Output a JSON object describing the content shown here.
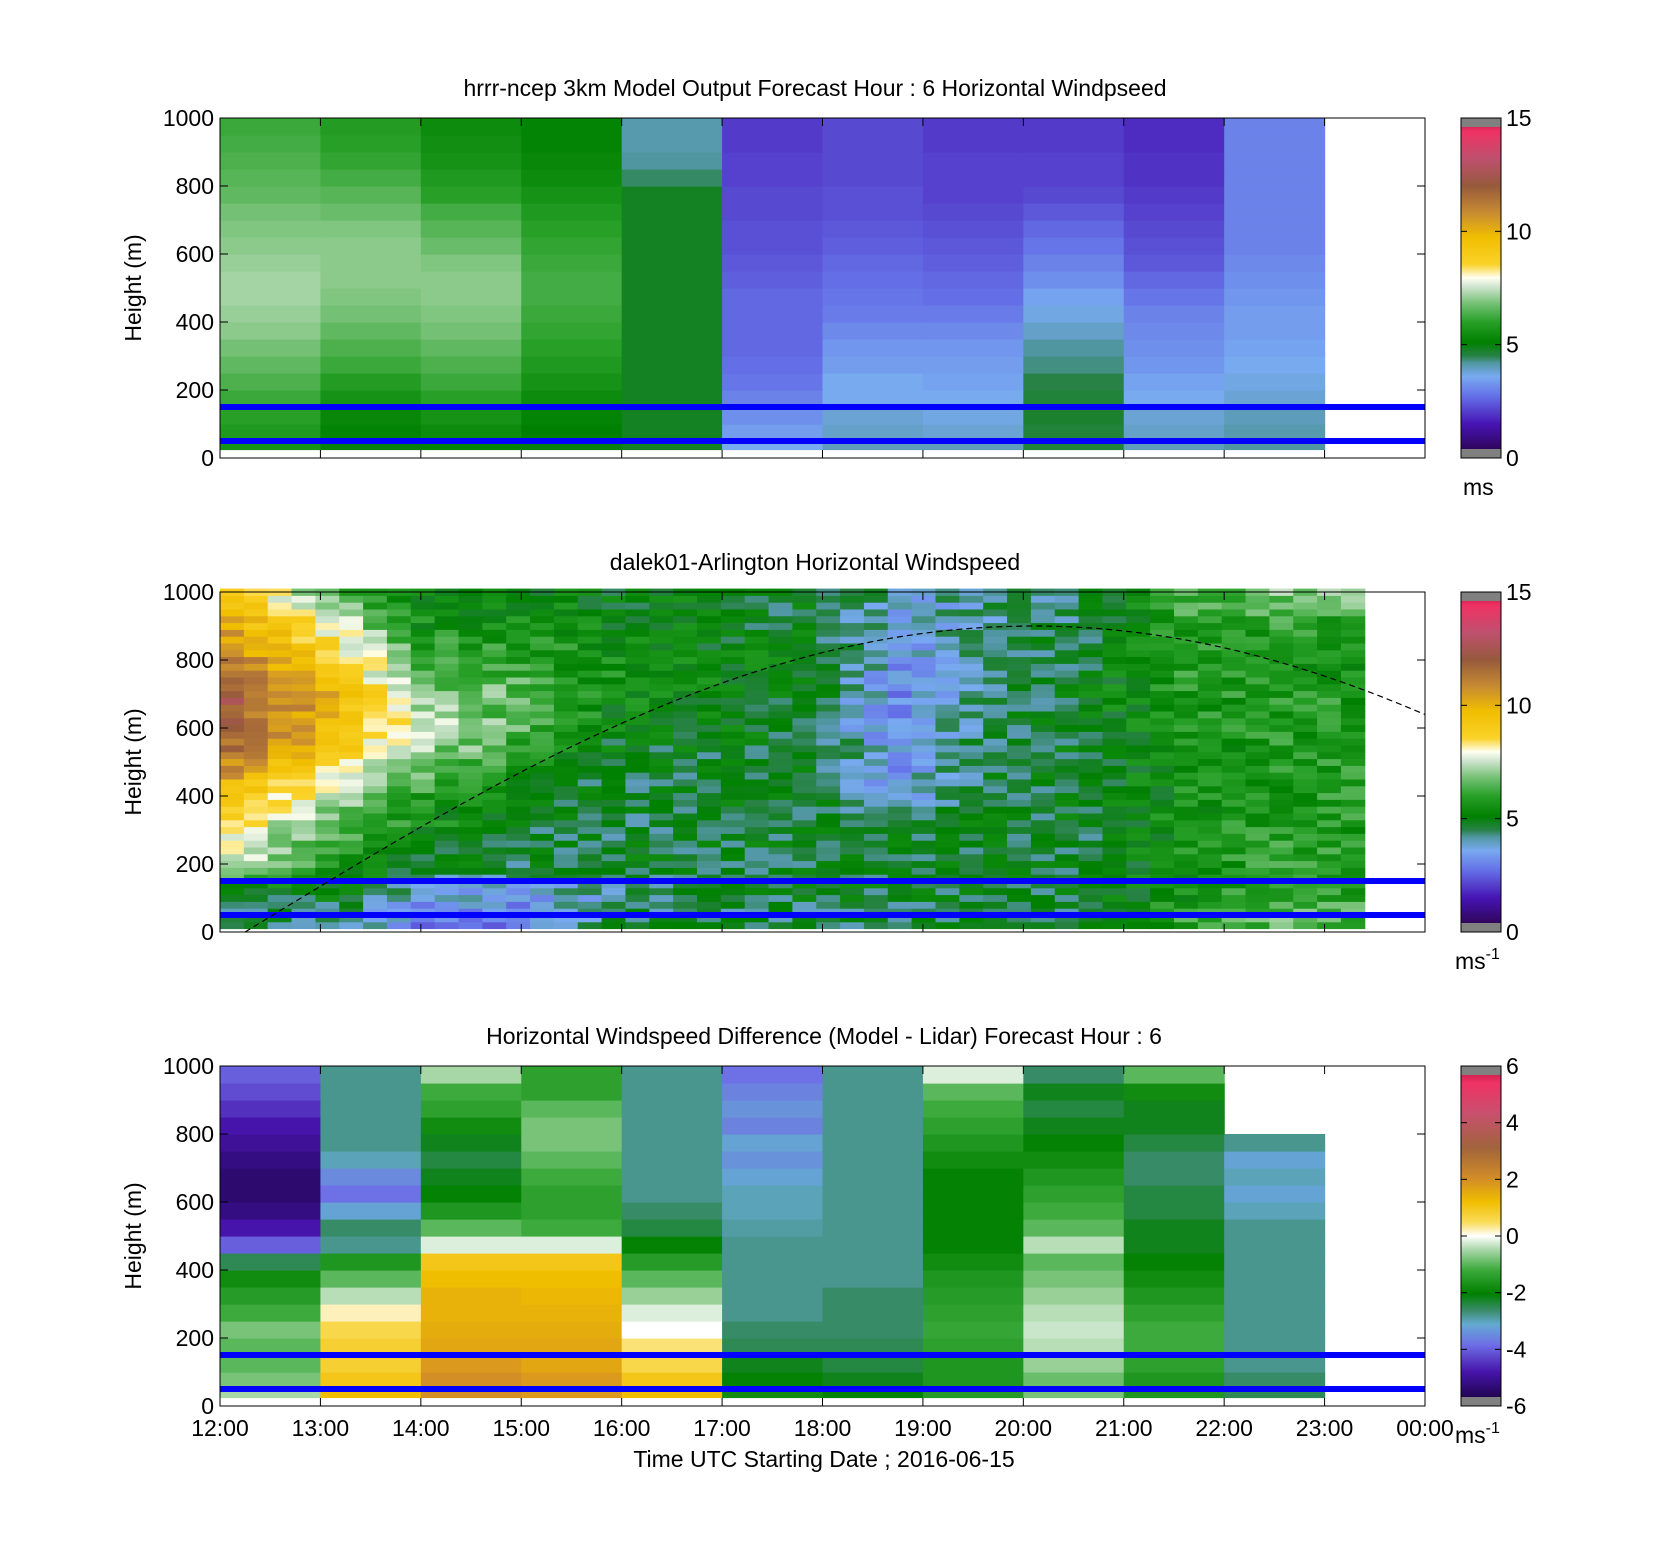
{
  "figure": {
    "xlabel": "Time UTC  Starting Date ; 2016-06-15",
    "xticks": [
      "12:00",
      "13:00",
      "14:00",
      "15:00",
      "16:00",
      "17:00",
      "18:00",
      "19:00",
      "20:00",
      "21:00",
      "22:00",
      "23:00",
      "00:00"
    ],
    "yticks": [
      "0",
      "200",
      "400",
      "600",
      "800",
      "1000"
    ],
    "ylabel": "Height (m)"
  },
  "panels": [
    {
      "id": "model",
      "title": "hrrr-ncep 3km Model Output   Forecast Hour : 6 Horizontal Windpseed",
      "colorbar": {
        "ticks": [
          "0",
          "5",
          "10",
          "15"
        ],
        "unit": "ms",
        "unit_sup": "",
        "min": 0,
        "max": 15
      },
      "colormap": "windspeed"
    },
    {
      "id": "lidar",
      "title": "dalek01-Arlington  Horizontal Windspeed",
      "colorbar": {
        "ticks": [
          "0",
          "5",
          "10",
          "15"
        ],
        "unit": "ms",
        "unit_sup": "-1",
        "min": 0,
        "max": 15
      },
      "colormap": "windspeed"
    },
    {
      "id": "diff",
      "title": "Horizontal Windspeed Difference (Model - Lidar) Forecast Hour : 6",
      "colorbar": {
        "ticks": [
          "-6",
          "-4",
          "-2",
          "0",
          "2",
          "4",
          "6"
        ],
        "unit": "ms",
        "unit_sup": "-1",
        "min": -6,
        "max": 6
      },
      "colormap": "difference"
    }
  ],
  "chart_data": [
    {
      "type": "heatmap",
      "title": "hrrr-ncep 3km Model Output   Forecast Hour : 6 Horizontal Windpseed",
      "xlabel": "",
      "ylabel": "Height (m)",
      "x_start": "12:00",
      "x_end": "00:00",
      "ylim": [
        0,
        1000
      ],
      "clim": [
        0,
        15
      ],
      "colorbar_label": "ms",
      "hours": [
        "12:00",
        "13:00",
        "14:00",
        "15:00",
        "16:00",
        "17:00",
        "18:00",
        "19:00",
        "20:00",
        "21:00",
        "22:00"
      ],
      "heights": [
        50,
        100,
        150,
        200,
        250,
        300,
        350,
        400,
        450,
        500,
        550,
        600,
        650,
        700,
        750,
        800,
        850,
        900,
        950,
        1000
      ],
      "values": [
        [
          5.6,
          5.0,
          5.2,
          5.0,
          4.8,
          3.6,
          4.0,
          4.0,
          4.6,
          4.0,
          4.2
        ],
        [
          5.8,
          5.2,
          5.4,
          5.1,
          4.8,
          3.4,
          3.9,
          3.8,
          4.6,
          3.9,
          4.1
        ],
        [
          6.0,
          5.3,
          5.6,
          5.2,
          4.8,
          3.2,
          3.8,
          3.7,
          4.7,
          3.8,
          4.0
        ],
        [
          6.2,
          5.6,
          6.0,
          5.4,
          4.8,
          3.0,
          3.6,
          3.6,
          4.6,
          3.6,
          3.8
        ],
        [
          6.4,
          5.9,
          6.2,
          5.6,
          4.8,
          2.8,
          3.6,
          3.5,
          4.5,
          3.5,
          3.7
        ],
        [
          6.6,
          6.2,
          6.4,
          5.8,
          4.8,
          2.7,
          3.4,
          3.4,
          4.3,
          3.3,
          3.6
        ],
        [
          6.8,
          6.4,
          6.6,
          6.0,
          4.8,
          2.6,
          3.3,
          3.3,
          4.2,
          3.2,
          3.5
        ],
        [
          7.0,
          6.6,
          6.8,
          6.1,
          4.8,
          2.6,
          3.1,
          3.1,
          3.9,
          3.1,
          3.4
        ],
        [
          7.1,
          6.8,
          6.9,
          6.2,
          4.8,
          2.6,
          2.9,
          2.9,
          3.7,
          3.0,
          3.4
        ],
        [
          7.2,
          6.9,
          7.0,
          6.3,
          4.8,
          2.6,
          2.8,
          2.7,
          3.5,
          2.8,
          3.3
        ],
        [
          7.2,
          7.0,
          7.0,
          6.3,
          4.8,
          2.5,
          2.7,
          2.6,
          3.2,
          2.6,
          3.2
        ],
        [
          7.1,
          7.0,
          6.9,
          6.2,
          4.8,
          2.4,
          2.6,
          2.5,
          3.0,
          2.4,
          3.1
        ],
        [
          7.0,
          7.0,
          6.7,
          6.1,
          4.8,
          2.3,
          2.5,
          2.4,
          2.8,
          2.3,
          3.0
        ],
        [
          6.9,
          6.9,
          6.5,
          6.0,
          4.8,
          2.3,
          2.4,
          2.3,
          2.6,
          2.2,
          3.0
        ],
        [
          6.8,
          6.7,
          6.3,
          5.8,
          4.8,
          2.2,
          2.3,
          2.2,
          2.4,
          2.1,
          3.0
        ],
        [
          6.6,
          6.5,
          6.0,
          5.6,
          4.8,
          2.2,
          2.3,
          2.1,
          2.2,
          2.0,
          3.0
        ],
        [
          6.5,
          6.3,
          5.8,
          5.4,
          4.4,
          2.1,
          2.2,
          2.1,
          2.1,
          1.9,
          3.0
        ],
        [
          6.4,
          6.1,
          5.6,
          5.3,
          4.2,
          2.1,
          2.2,
          2.1,
          2.1,
          1.9,
          3.0
        ],
        [
          6.3,
          6.0,
          5.5,
          5.2,
          4.1,
          2.0,
          2.2,
          2.0,
          2.0,
          1.8,
          3.0
        ],
        [
          6.2,
          5.9,
          5.4,
          5.2,
          4.1,
          2.0,
          2.2,
          2.0,
          2.0,
          1.8,
          3.0
        ]
      ],
      "reference_lines_m": [
        150,
        50
      ]
    },
    {
      "type": "heatmap",
      "title": "dalek01-Arlington  Horizontal Windspeed",
      "xlabel": "",
      "ylabel": "Height (m)",
      "x_start": "12:00",
      "x_end": "00:00",
      "ylim": [
        0,
        1000
      ],
      "clim": [
        0,
        15
      ],
      "colorbar_label": "ms-1",
      "time_columns": 48,
      "time_step_minutes": 15,
      "hours": [
        "12:00",
        "13:00",
        "14:00",
        "15:00",
        "16:00",
        "17:00",
        "18:00",
        "19:00",
        "20:00",
        "21:00",
        "22:00",
        "23:00"
      ],
      "heights": [
        50,
        100,
        200,
        300,
        400,
        500,
        600,
        700,
        800,
        900,
        1000
      ],
      "hourly_profile_values": [
        [
          4.5,
          4.5,
          3.0,
          3.0,
          4.5,
          4.5,
          4.5,
          4.5,
          4.5,
          4.5,
          6.0,
          6.5
        ],
        [
          5.0,
          5.0,
          4.0,
          3.5,
          4.0,
          4.8,
          4.8,
          4.8,
          4.8,
          4.8,
          5.5,
          6.0
        ],
        [
          7.5,
          6.0,
          5.0,
          4.8,
          4.8,
          4.8,
          4.8,
          4.8,
          4.8,
          4.8,
          5.5,
          6.0
        ],
        [
          8.5,
          6.5,
          5.5,
          4.8,
          4.6,
          4.8,
          4.8,
          4.8,
          4.8,
          4.8,
          5.5,
          5.8
        ],
        [
          9.5,
          7.5,
          6.0,
          5.2,
          4.6,
          4.8,
          4.8,
          3.5,
          4.8,
          4.8,
          5.5,
          5.8
        ],
        [
          11.0,
          9.0,
          7.0,
          6.0,
          4.8,
          4.8,
          4.8,
          3.5,
          4.8,
          4.8,
          5.5,
          5.8
        ],
        [
          12.0,
          10.0,
          7.5,
          6.5,
          5.2,
          5.0,
          4.8,
          3.2,
          4.5,
          5.0,
          5.6,
          5.8
        ],
        [
          12.0,
          10.0,
          7.0,
          6.5,
          5.5,
          5.2,
          5.0,
          3.2,
          4.5,
          5.0,
          5.8,
          5.8
        ],
        [
          11.0,
          9.0,
          6.2,
          6.0,
          5.5,
          5.2,
          5.0,
          3.5,
          4.5,
          4.8,
          5.8,
          5.5
        ],
        [
          10.0,
          8.0,
          5.5,
          5.5,
          5.2,
          5.0,
          4.8,
          3.6,
          4.2,
          4.5,
          6.0,
          6.0
        ],
        [
          9.0,
          6.5,
          5.0,
          5.0,
          5.0,
          5.0,
          4.8,
          4.0,
          4.2,
          4.8,
          6.5,
          7.0
        ]
      ],
      "reference_lines_m": [
        150,
        50
      ]
    },
    {
      "type": "heatmap",
      "title": "Horizontal Windspeed Difference (Model - Lidar) Forecast Hour : 6",
      "xlabel": "Time UTC  Starting Date ; 2016-06-15",
      "ylabel": "Height (m)",
      "x_start": "12:00",
      "x_end": "00:00",
      "ylim": [
        0,
        1000
      ],
      "clim": [
        -6,
        6
      ],
      "colorbar_label": "ms-1",
      "hours": [
        "12:00",
        "13:00",
        "14:00",
        "15:00",
        "16:00",
        "17:00",
        "18:00",
        "19:00",
        "20:00",
        "21:00",
        "22:00"
      ],
      "heights": [
        50,
        100,
        150,
        200,
        250,
        300,
        350,
        400,
        450,
        500,
        550,
        600,
        650,
        700,
        750,
        800,
        850,
        900,
        950,
        1000
      ],
      "values": [
        [
          -0.5,
          1.2,
          2.0,
          1.8,
          1.2,
          -1.8,
          -2.0,
          -1.5,
          -0.8,
          -1.6,
          -2.5
        ],
        [
          -0.8,
          1.0,
          2.0,
          1.8,
          1.0,
          -2.0,
          -2.2,
          -1.6,
          -0.9,
          -1.6,
          -2.6
        ],
        [
          -1.0,
          0.8,
          1.8,
          1.6,
          0.6,
          -2.2,
          -2.4,
          -1.6,
          -0.6,
          -1.4,
          -2.8
        ],
        [
          -1.0,
          0.8,
          1.6,
          1.6,
          0.4,
          -2.5,
          -2.5,
          -1.4,
          -0.4,
          -1.2,
          -2.8
        ],
        [
          -0.8,
          0.6,
          1.5,
          1.5,
          0.0,
          -2.6,
          -2.6,
          -1.3,
          -0.3,
          -1.2,
          -2.8
        ],
        [
          -1.2,
          0.2,
          1.4,
          1.4,
          -0.2,
          -2.8,
          -2.6,
          -1.4,
          -0.4,
          -1.4,
          -2.8
        ],
        [
          -1.5,
          -0.4,
          1.4,
          1.3,
          -0.6,
          -2.8,
          -2.6,
          -1.5,
          -0.6,
          -1.6,
          -2.8
        ],
        [
          -1.8,
          -1.0,
          1.2,
          1.2,
          -1.0,
          -2.8,
          -2.8,
          -1.6,
          -0.8,
          -1.8,
          -2.8
        ],
        [
          -2.5,
          -1.6,
          1.0,
          1.0,
          -1.5,
          -2.8,
          -2.8,
          -1.8,
          -1.0,
          -2.0,
          -2.8
        ],
        [
          -4.0,
          -2.8,
          -0.2,
          -0.2,
          -2.0,
          -2.8,
          -2.8,
          -2.0,
          -0.4,
          -2.2,
          -2.8
        ],
        [
          -4.8,
          -2.6,
          -1.0,
          -1.2,
          -2.4,
          -2.9,
          -2.8,
          -2.0,
          -1.0,
          -2.2,
          -2.8
        ],
        [
          -5.2,
          -3.2,
          -1.6,
          -1.4,
          -2.6,
          -3.0,
          -2.8,
          -2.0,
          -1.2,
          -2.4,
          -3.0
        ],
        [
          -5.4,
          -3.8,
          -2.0,
          -1.4,
          -2.8,
          -3.0,
          -2.8,
          -2.0,
          -1.4,
          -2.4,
          -3.2
        ],
        [
          -5.4,
          -3.5,
          -2.2,
          -1.2,
          -2.8,
          -3.2,
          -2.8,
          -2.0,
          -1.6,
          -2.6,
          -3.0
        ],
        [
          -5.2,
          -3.0,
          -2.4,
          -1.0,
          -2.8,
          -3.4,
          -2.8,
          -1.8,
          -1.8,
          -2.6,
          -3.2
        ],
        [
          -5.0,
          -2.8,
          -2.2,
          -0.8,
          -2.8,
          -3.2,
          -2.8,
          -1.6,
          -2.0,
          -2.4,
          -2.8
        ],
        [
          -4.8,
          -2.8,
          -1.8,
          -0.8,
          -2.8,
          -3.6,
          -2.8,
          -1.4,
          -2.2,
          -2.2,
          null
        ],
        [
          -4.5,
          -2.8,
          -1.4,
          -1.0,
          -2.8,
          -3.4,
          -2.8,
          -1.2,
          -2.4,
          -2.2,
          null
        ],
        [
          -4.2,
          -2.8,
          -1.2,
          -1.4,
          -2.8,
          -3.6,
          -2.8,
          -1.0,
          -2.2,
          -1.8,
          null
        ],
        [
          -4.0,
          -2.8,
          -0.5,
          -1.4,
          -2.8,
          -3.8,
          -2.8,
          -0.2,
          -2.6,
          -1.0,
          null
        ]
      ],
      "reference_lines_m": [
        150,
        50
      ]
    }
  ]
}
